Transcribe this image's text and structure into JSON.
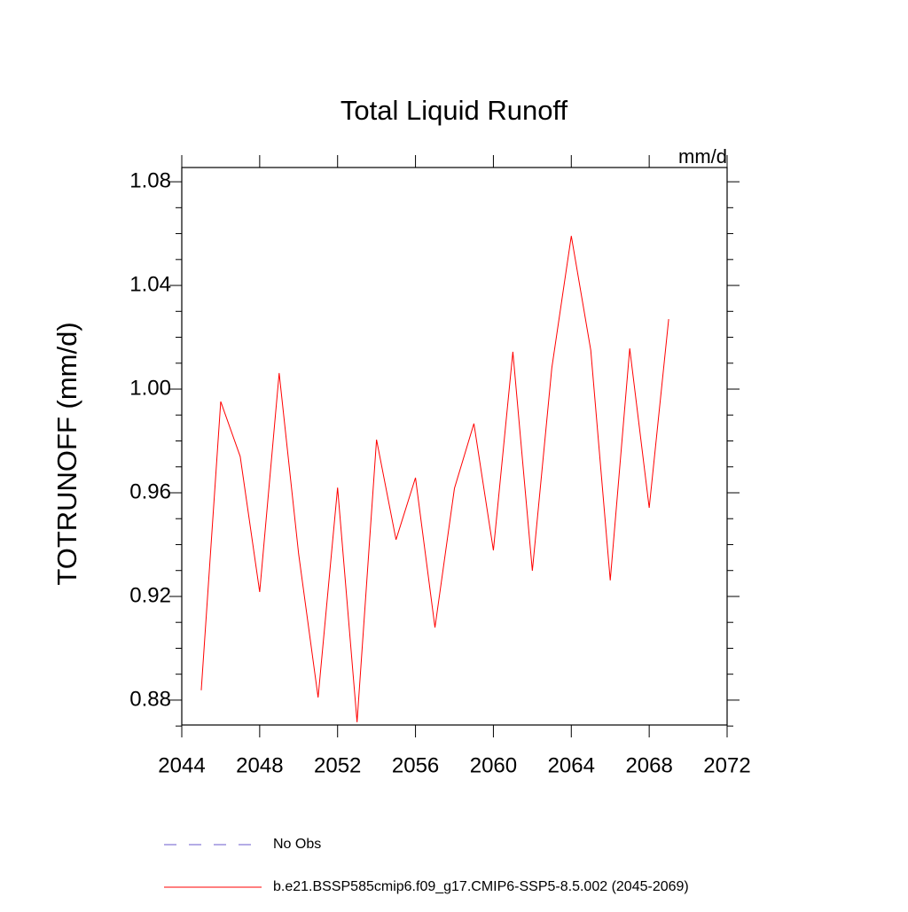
{
  "chart_data": {
    "type": "line",
    "title": "Total Liquid Runoff",
    "units": "mm/d",
    "y_label": "TOTRUNOFF  (mm/d)",
    "x": [
      2045,
      2046,
      2047,
      2048,
      2049,
      2050,
      2051,
      2052,
      2053,
      2054,
      2055,
      2056,
      2057,
      2058,
      2059,
      2060,
      2061,
      2062,
      2063,
      2064,
      2065,
      2066,
      2067,
      2068,
      2069
    ],
    "series": [
      {
        "name": "No Obs",
        "color": "#6a5acd",
        "dash": true,
        "values": [
          null,
          null,
          null,
          null,
          null,
          null,
          null,
          null,
          null,
          null,
          null,
          null,
          null,
          null,
          null,
          null,
          null,
          null,
          null,
          null,
          null,
          null,
          null,
          null,
          null
        ]
      },
      {
        "name": "b.e21.BSSP585cmip6.f09_g17.CMIP6-SSP5-8.5.002 (2045-2069)",
        "color": "#ff0000",
        "dash": false,
        "values": [
          0.8838,
          0.9952,
          0.974,
          0.9217,
          1.0062,
          0.9364,
          0.881,
          0.962,
          0.8715,
          0.9805,
          0.9419,
          0.9658,
          0.908,
          0.9617,
          0.9867,
          0.9378,
          1.0144,
          0.9299,
          1.0082,
          1.0591,
          1.015,
          0.9262,
          1.0157,
          0.9542,
          1.027
        ]
      }
    ],
    "xlim": [
      2044,
      2072
    ],
    "xticks": [
      2044,
      2048,
      2052,
      2056,
      2060,
      2064,
      2068,
      2072
    ],
    "ylim": [
      0.8704,
      1.0855
    ],
    "yticks": [
      0.88,
      0.92,
      0.96,
      {
        "value": 1.0,
        "label": "1.00"
      },
      1.04,
      1.08
    ],
    "yminorticks": [
      0.87,
      0.89,
      0.9,
      0.91,
      0.93,
      0.94,
      0.95,
      0.97,
      0.98,
      0.99,
      1.01,
      1.02,
      1.03,
      1.05,
      1.06,
      1.07
    ],
    "grid": false
  }
}
